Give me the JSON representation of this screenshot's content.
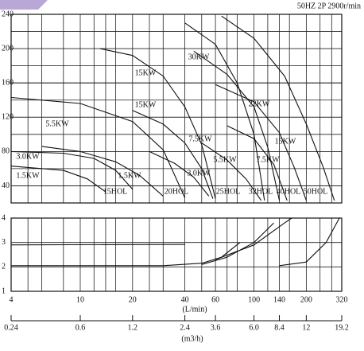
{
  "header": "50HZ  2P  2900r/min",
  "chart_data": [
    {
      "type": "line",
      "xscale": "log",
      "xlim": [
        4,
        320
      ],
      "ylim": [
        20,
        240
      ],
      "yticks": [
        40,
        80,
        120,
        160,
        200,
        240
      ],
      "ygrid": [
        40,
        60,
        80,
        100,
        120,
        140,
        160,
        180,
        200,
        220
      ],
      "xgrid": [
        5,
        6,
        8,
        10,
        12,
        14,
        16,
        20,
        25,
        30,
        40,
        50,
        60,
        70,
        80,
        100,
        120,
        140,
        160,
        200,
        240,
        280
      ],
      "annotations": [
        "30KW",
        "15KW",
        "22KW",
        "15KW",
        "5.5KW",
        "7.5KW",
        "15KW",
        "3.0KW",
        "5.5KW",
        "7.5KW",
        "1.5KW",
        "1.5KW",
        "3.0KW",
        "15HOL",
        "20HOL",
        "25HOL",
        "32HOL",
        "40HOL",
        "50HOL"
      ],
      "series": [
        {
          "color": "#111111",
          "x": [
            4,
            8,
            12,
            16,
            20
          ],
          "values": [
            80,
            78,
            72,
            58,
            36
          ]
        },
        {
          "color": "#111111",
          "x": [
            4,
            8,
            11,
            14
          ],
          "values": [
            63,
            58,
            48,
            33
          ]
        },
        {
          "color": "#111111",
          "x": [
            4,
            10,
            20,
            30,
            40
          ],
          "values": [
            143,
            136,
            115,
            82,
            26
          ]
        },
        {
          "color": "#111111",
          "x": [
            6,
            10,
            16,
            22,
            30
          ],
          "values": [
            86,
            80,
            68,
            52,
            28
          ]
        },
        {
          "color": "#111111",
          "x": [
            25,
            35,
            45,
            55
          ],
          "values": [
            80,
            66,
            50,
            28
          ]
        },
        {
          "color": "#111111",
          "x": [
            20,
            30,
            40,
            50,
            58
          ],
          "values": [
            128,
            112,
            90,
            60,
            25
          ]
        },
        {
          "color": "#111111",
          "x": [
            13,
            20,
            30,
            40,
            50,
            60
          ],
          "values": [
            200,
            192,
            168,
            132,
            88,
            25
          ]
        },
        {
          "color": "#111111",
          "x": [
            40,
            60,
            80,
            100,
            115
          ],
          "values": [
            230,
            205,
            160,
            100,
            23
          ]
        },
        {
          "color": "#111111",
          "x": [
            45,
            70,
            100,
            120,
            140
          ],
          "values": [
            197,
            170,
            132,
            85,
            23
          ]
        },
        {
          "color": "#111111",
          "x": [
            60,
            100,
            140,
            170,
            200
          ],
          "values": [
            158,
            138,
            102,
            62,
            23
          ]
        },
        {
          "color": "#111111",
          "x": [
            70,
            100,
            130,
            155
          ],
          "values": [
            110,
            95,
            65,
            23
          ]
        },
        {
          "color": "#111111",
          "x": [
            50,
            70,
            90,
            110
          ],
          "values": [
            90,
            70,
            48,
            23
          ]
        },
        {
          "color": "#111111",
          "x": [
            65,
            100,
            150,
            200,
            250,
            290
          ],
          "values": [
            238,
            212,
            168,
            112,
            62,
            23
          ]
        }
      ]
    },
    {
      "type": "line",
      "xscale": "log",
      "xlim": [
        4,
        320
      ],
      "ylim": [
        1,
        4
      ],
      "yticks": [
        1,
        2,
        3,
        4
      ],
      "xticks": [
        4,
        10,
        20,
        40,
        60,
        100,
        140,
        200,
        320
      ],
      "xgrid": [
        5,
        6,
        8,
        10,
        12,
        14,
        16,
        20,
        25,
        30,
        40,
        50,
        60,
        70,
        80,
        100,
        120,
        140,
        160,
        200,
        240,
        280
      ],
      "xlabel": "(L/min)",
      "x2lim": [
        0.24,
        19.2
      ],
      "x2ticks": [
        0.24,
        0.6,
        1.2,
        2.4,
        3.6,
        {
          "value": 6,
          "label": "6.0"
        },
        8.4,
        12,
        19.2
      ],
      "x2label": "(m3/h)",
      "series": [
        {
          "color": "#111111",
          "x": [
            4,
            40
          ],
          "values": [
            2.9,
            2.92
          ]
        },
        {
          "color": "#111111",
          "x": [
            4,
            30,
            50,
            65,
            83
          ],
          "values": [
            2.05,
            2.05,
            2.15,
            2.4,
            3.0
          ]
        },
        {
          "color": "#111111",
          "x": [
            50,
            70,
            100,
            130
          ],
          "values": [
            2.1,
            2.4,
            3.0,
            3.8
          ]
        },
        {
          "color": "#111111",
          "x": [
            60,
            100,
            150,
            165
          ],
          "values": [
            2.3,
            2.9,
            3.8,
            4.0
          ]
        },
        {
          "color": "#111111",
          "x": [
            140,
            200,
            260,
            310
          ],
          "values": [
            2.05,
            2.2,
            3.0,
            4.0
          ]
        }
      ]
    }
  ]
}
